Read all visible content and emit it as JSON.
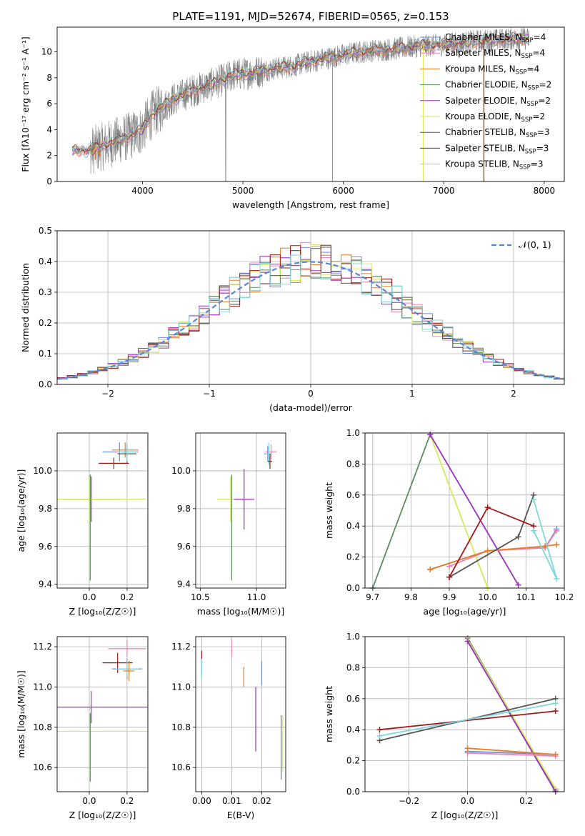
{
  "title": "PLATE=1191, MJD=52674, FIBERID=0565, z=0.153",
  "colors": {
    "chabrier_miles": "#6a8fd8",
    "salpeter_miles": "#ee82b4",
    "kroupa_miles": "#e87d22",
    "chabrier_elodie": "#5b8f5b",
    "salpeter_elodie": "#9b2fbf",
    "kroupa_elodie": "#d7e85a",
    "chabrier_stelib": "#555555",
    "salpeter_stelib": "#a01818",
    "kroupa_stelib": "#7fd6dd",
    "data": "#808080"
  },
  "chart_data": [
    {
      "id": "spectrum",
      "type": "line",
      "xlabel": "wavelength [Angstrom, rest frame]",
      "ylabel": "Flux [fλ10⁻¹⁷ erg cm⁻² s⁻¹ A⁻¹]",
      "xlim": [
        3150,
        8200
      ],
      "ylim": [
        0,
        11.9
      ],
      "xticks": [
        4000,
        5000,
        6000,
        7000,
        8000
      ],
      "yticks": [
        0,
        2,
        4,
        6,
        8,
        10
      ],
      "grid": false,
      "legend_position": "top-right",
      "continuum": {
        "x": [
          3300,
          3500,
          3700,
          3900,
          4000,
          4100,
          4300,
          4500,
          4700,
          4900,
          5100,
          5300,
          5500,
          5700,
          5900,
          6100,
          6300,
          6500,
          6700,
          6900,
          7100,
          7300,
          7500,
          7700,
          7850
        ],
        "y": [
          2.4,
          2.4,
          3.0,
          3.6,
          4.0,
          5.2,
          6.3,
          7.0,
          7.5,
          8.2,
          8.4,
          8.7,
          8.9,
          9.3,
          9.6,
          9.9,
          10.1,
          10.2,
          10.4,
          10.5,
          10.6,
          10.8,
          10.9,
          11.0,
          11.0
        ]
      },
      "legend": [
        {
          "label": "Chabrier MILES, N",
          "sub": "SSP",
          "suffix": "=4",
          "color_key": "chabrier_miles"
        },
        {
          "label": "Salpeter MILES, N",
          "sub": "SSP",
          "suffix": "=4",
          "color_key": "salpeter_miles"
        },
        {
          "label": "Kroupa MILES, N",
          "sub": "SSP",
          "suffix": "=4",
          "color_key": "kroupa_miles"
        },
        {
          "label": "Chabrier ELODIE, N",
          "sub": "SSP",
          "suffix": "=2",
          "color_key": "chabrier_elodie"
        },
        {
          "label": "Salpeter ELODIE, N",
          "sub": "SSP",
          "suffix": "=2",
          "color_key": "salpeter_elodie"
        },
        {
          "label": "Kroupa ELODIE, N",
          "sub": "SSP",
          "suffix": "=2",
          "color_key": "kroupa_elodie"
        },
        {
          "label": "Chabrier STELIB, N",
          "sub": "SSP",
          "suffix": "=3",
          "color_key": "chabrier_stelib"
        },
        {
          "label": "Salpeter STELIB, N",
          "sub": "SSP",
          "suffix": "=3",
          "color_key": "salpeter_stelib"
        },
        {
          "label": "Kroupa STELIB, N",
          "sub": "SSP",
          "suffix": "=3",
          "color_key": "kroupa_stelib"
        }
      ]
    },
    {
      "id": "residuals",
      "type": "line",
      "xlabel": "(data-model)/error",
      "ylabel": "Normed distribution",
      "xlim": [
        -2.5,
        2.5
      ],
      "ylim": [
        0,
        0.5
      ],
      "xticks": [
        -2,
        -1,
        0,
        1,
        2
      ],
      "yticks": [
        0.0,
        0.1,
        0.2,
        0.3,
        0.4,
        0.5
      ],
      "grid": true,
      "legend_position": "top-right",
      "legend": [
        {
          "label": "𝒩(0, 1)",
          "color": "#5b85d8"
        }
      ],
      "bin_width": 0.1,
      "bins_start": -2.5
    },
    {
      "id": "age_vs_z",
      "type": "scatter",
      "xlabel": "Z [log₁₀(Z/Z☉)]",
      "ylabel": "age  [log₁₀(age/yr)]",
      "xlim": [
        -0.17,
        0.31
      ],
      "ylim": [
        9.38,
        10.2
      ],
      "xticks": [
        0.0,
        0.2
      ],
      "yticks": [
        9.4,
        9.6,
        9.8,
        10.0
      ],
      "grid": true,
      "points": [
        {
          "x": 0.01,
          "y": 9.85,
          "xerr": 0.15,
          "yerr": 0.12,
          "color_key": "salpeter_elodie"
        },
        {
          "x": 0.0,
          "y": 9.85,
          "xerr": 0.3,
          "yerr": 0.12,
          "color_key": "kroupa_elodie"
        },
        {
          "x": 0.005,
          "y": 9.7,
          "xerr": 0.0,
          "yerr": 0.28,
          "color_key": "chabrier_elodie"
        },
        {
          "x": 0.16,
          "y": 10.1,
          "xerr": 0.09,
          "yerr": 0.05,
          "color_key": "chabrier_miles"
        },
        {
          "x": 0.2,
          "y": 10.1,
          "xerr": 0.06,
          "yerr": 0.04,
          "color_key": "salpeter_miles"
        },
        {
          "x": 0.19,
          "y": 10.11,
          "xerr": 0.07,
          "yerr": 0.04,
          "color_key": "kroupa_miles"
        },
        {
          "x": 0.13,
          "y": 10.04,
          "xerr": 0.08,
          "yerr": 0.03,
          "color_key": "salpeter_stelib"
        },
        {
          "x": 0.2,
          "y": 10.09,
          "xerr": 0.05,
          "yerr": 0.05,
          "color_key": "chabrier_stelib"
        },
        {
          "x": 0.2,
          "y": 10.1,
          "xerr": 0.05,
          "yerr": 0.05,
          "color_key": "kroupa_stelib"
        }
      ]
    },
    {
      "id": "age_vs_mass",
      "type": "scatter",
      "xlabel": "mass [log₁₀(M/M☉)]",
      "ylabel": "",
      "xlim": [
        10.46,
        11.26
      ],
      "ylim": [
        9.38,
        10.2
      ],
      "xticks": [
        10.5,
        11.0
      ],
      "yticks": [
        9.4,
        9.6,
        9.8,
        10.0
      ],
      "grid": true,
      "points": [
        {
          "x": 10.77,
          "y": 9.85,
          "xerr": 0.12,
          "yerr": 0.12,
          "color_key": "kroupa_elodie"
        },
        {
          "x": 10.89,
          "y": 9.85,
          "xerr": 0.09,
          "yerr": 0.16,
          "color_key": "salpeter_elodie"
        },
        {
          "x": 10.78,
          "y": 9.7,
          "xerr": 0.0,
          "yerr": 0.28,
          "color_key": "chabrier_elodie"
        },
        {
          "x": 11.1,
          "y": 10.09,
          "xerr": 0.03,
          "yerr": 0.04,
          "color_key": "chabrier_miles"
        },
        {
          "x": 11.13,
          "y": 10.1,
          "xerr": 0.05,
          "yerr": 0.04,
          "color_key": "salpeter_miles"
        },
        {
          "x": 11.11,
          "y": 10.09,
          "xerr": 0.03,
          "yerr": 0.06,
          "color_key": "kroupa_stelib"
        },
        {
          "x": 11.12,
          "y": 10.05,
          "xerr": 0.02,
          "yerr": 0.04,
          "color_key": "salpeter_stelib"
        }
      ]
    },
    {
      "id": "mass_weight_vs_age",
      "type": "line",
      "xlabel": "age  [log₁₀(age/yr)]",
      "ylabel": "mass weight",
      "xlim": [
        9.68,
        10.2
      ],
      "ylim": [
        0,
        1
      ],
      "xticks": [
        9.7,
        9.8,
        9.9,
        10.0,
        10.1,
        10.2
      ],
      "yticks": [
        0.0,
        0.2,
        0.4,
        0.6,
        0.8,
        1.0
      ],
      "grid": true,
      "series": [
        {
          "color_key": "chabrier_elodie",
          "x": [
            9.7,
            9.85
          ],
          "y": [
            0.0,
            0.99
          ]
        },
        {
          "color_key": "kroupa_elodie",
          "x": [
            9.85,
            10.0
          ],
          "y": [
            0.99,
            0.0
          ]
        },
        {
          "color_key": "salpeter_elodie",
          "x": [
            9.85,
            10.08
          ],
          "y": [
            0.99,
            0.02
          ]
        },
        {
          "color_key": "chabrier_miles",
          "x": [
            9.85,
            10.0,
            10.15,
            10.18
          ],
          "y": [
            0.12,
            0.24,
            0.26,
            0.38
          ]
        },
        {
          "color_key": "salpeter_miles",
          "x": [
            9.9,
            10.0,
            10.15,
            10.18
          ],
          "y": [
            0.14,
            0.24,
            0.26,
            0.37
          ]
        },
        {
          "color_key": "kroupa_miles",
          "x": [
            9.85,
            10.0,
            10.15,
            10.18
          ],
          "y": [
            0.12,
            0.24,
            0.27,
            0.28
          ]
        },
        {
          "color_key": "chabrier_stelib",
          "x": [
            9.9,
            10.08,
            10.12
          ],
          "y": [
            0.07,
            0.33,
            0.6
          ]
        },
        {
          "color_key": "salpeter_stelib",
          "x": [
            9.9,
            10.0,
            10.12
          ],
          "y": [
            0.07,
            0.52,
            0.4
          ]
        },
        {
          "color_key": "kroupa_stelib",
          "x": [
            10.12,
            10.18,
            10.12
          ],
          "y": [
            0.57,
            0.06,
            0.37
          ]
        }
      ]
    },
    {
      "id": "mass_vs_z",
      "type": "scatter",
      "xlabel": "Z [log₁₀(Z/Z☉)]",
      "ylabel": "mass [log₁₀(M/M☉)]",
      "xlim": [
        -0.17,
        0.31
      ],
      "ylim": [
        10.48,
        11.25
      ],
      "xticks": [
        0.0,
        0.2
      ],
      "yticks": [
        10.6,
        10.8,
        11.0,
        11.2
      ],
      "grid": true,
      "points": [
        {
          "x": 0.01,
          "y": 10.9,
          "xerr": 0.3,
          "yerr": 0.08,
          "color_key": "salpeter_elodie"
        },
        {
          "x": 0.01,
          "y": 10.78,
          "xerr": 0.3,
          "yerr": 0.0,
          "color_key": "kroupa_elodie"
        },
        {
          "x": 0.005,
          "y": 10.7,
          "xerr": 0.0,
          "yerr": 0.17,
          "color_key": "chabrier_elodie"
        },
        {
          "x": 0.2,
          "y": 11.19,
          "xerr": 0.1,
          "yerr": 0.04,
          "color_key": "salpeter_miles"
        },
        {
          "x": 0.15,
          "y": 11.12,
          "xerr": 0.08,
          "yerr": 0.05,
          "color_key": "salpeter_stelib"
        },
        {
          "x": 0.2,
          "y": 11.09,
          "xerr": 0.08,
          "yerr": 0.05,
          "color_key": "chabrier_miles"
        },
        {
          "x": 0.2,
          "y": 11.09,
          "xerr": 0.06,
          "yerr": 0.04,
          "color_key": "kroupa_stelib"
        },
        {
          "x": 0.21,
          "y": 11.08,
          "xerr": 0.03,
          "yerr": 0.05,
          "color_key": "kroupa_miles"
        }
      ]
    },
    {
      "id": "mass_vs_ebv",
      "type": "scatter",
      "xlabel": "E(B-V)",
      "ylabel": "",
      "xlim": [
        -0.002,
        0.028
      ],
      "ylim": [
        10.48,
        11.25
      ],
      "xticks": [
        0.0,
        0.01,
        0.02
      ],
      "yticks": [
        10.6,
        10.8,
        11.0,
        11.2
      ],
      "grid": true,
      "points": [
        {
          "x": 0.0,
          "y": 11.12,
          "xerr": 0,
          "yerr": 0.06,
          "color_key": "salpeter_stelib"
        },
        {
          "x": 0.0,
          "y": 11.09,
          "xerr": 0,
          "yerr": 0.05,
          "color_key": "kroupa_stelib"
        },
        {
          "x": 0.01,
          "y": 11.19,
          "xerr": 0,
          "yerr": 0.04,
          "color_key": "salpeter_miles"
        },
        {
          "x": 0.014,
          "y": 11.05,
          "xerr": 0,
          "yerr": 0.05,
          "color_key": "kroupa_miles"
        },
        {
          "x": 0.018,
          "y": 10.84,
          "xerr": 0,
          "yerr": 0.16,
          "color_key": "salpeter_elodie"
        },
        {
          "x": 0.02,
          "y": 11.07,
          "xerr": 0,
          "yerr": 0.06,
          "color_key": "chabrier_miles"
        },
        {
          "x": 0.027,
          "y": 10.72,
          "xerr": 0,
          "yerr": 0.14,
          "color_key": "kroupa_elodie"
        },
        {
          "x": 0.0265,
          "y": 10.7,
          "xerr": 0,
          "yerr": 0.16,
          "color_key": "chabrier_elodie"
        }
      ]
    },
    {
      "id": "mass_weight_vs_z",
      "type": "line",
      "xlabel": "Z [log₁₀(Z/Z☉)]",
      "ylabel": "mass weight",
      "xlim": [
        -0.35,
        0.33
      ],
      "ylim": [
        0,
        1
      ],
      "xticks": [
        -0.2,
        0.0,
        0.2
      ],
      "yticks": [
        0.0,
        0.2,
        0.4,
        0.6,
        0.8,
        1.0
      ],
      "grid": true,
      "series": [
        {
          "color_key": "chabrier_elodie",
          "x": [
            0.0,
            0.3
          ],
          "y": [
            0.99,
            0.01
          ]
        },
        {
          "color_key": "kroupa_elodie",
          "x": [
            0.0,
            0.3
          ],
          "y": [
            0.98,
            0.02
          ]
        },
        {
          "color_key": "salpeter_elodie",
          "x": [
            0.0,
            0.3
          ],
          "y": [
            0.97,
            0.0
          ]
        },
        {
          "color_key": "chabrier_stelib",
          "x": [
            -0.3,
            0.3
          ],
          "y": [
            0.33,
            0.6
          ]
        },
        {
          "color_key": "salpeter_stelib",
          "x": [
            -0.3,
            0.3
          ],
          "y": [
            0.4,
            0.52
          ]
        },
        {
          "color_key": "kroupa_stelib",
          "x": [
            -0.3,
            0.3
          ],
          "y": [
            0.36,
            0.57
          ]
        },
        {
          "color_key": "chabrier_miles",
          "x": [
            0.0,
            0.3
          ],
          "y": [
            0.26,
            0.24
          ]
        },
        {
          "color_key": "salpeter_miles",
          "x": [
            0.0,
            0.3
          ],
          "y": [
            0.25,
            0.23
          ]
        },
        {
          "color_key": "kroupa_miles",
          "x": [
            0.0,
            0.3
          ],
          "y": [
            0.28,
            0.24
          ]
        }
      ]
    }
  ]
}
